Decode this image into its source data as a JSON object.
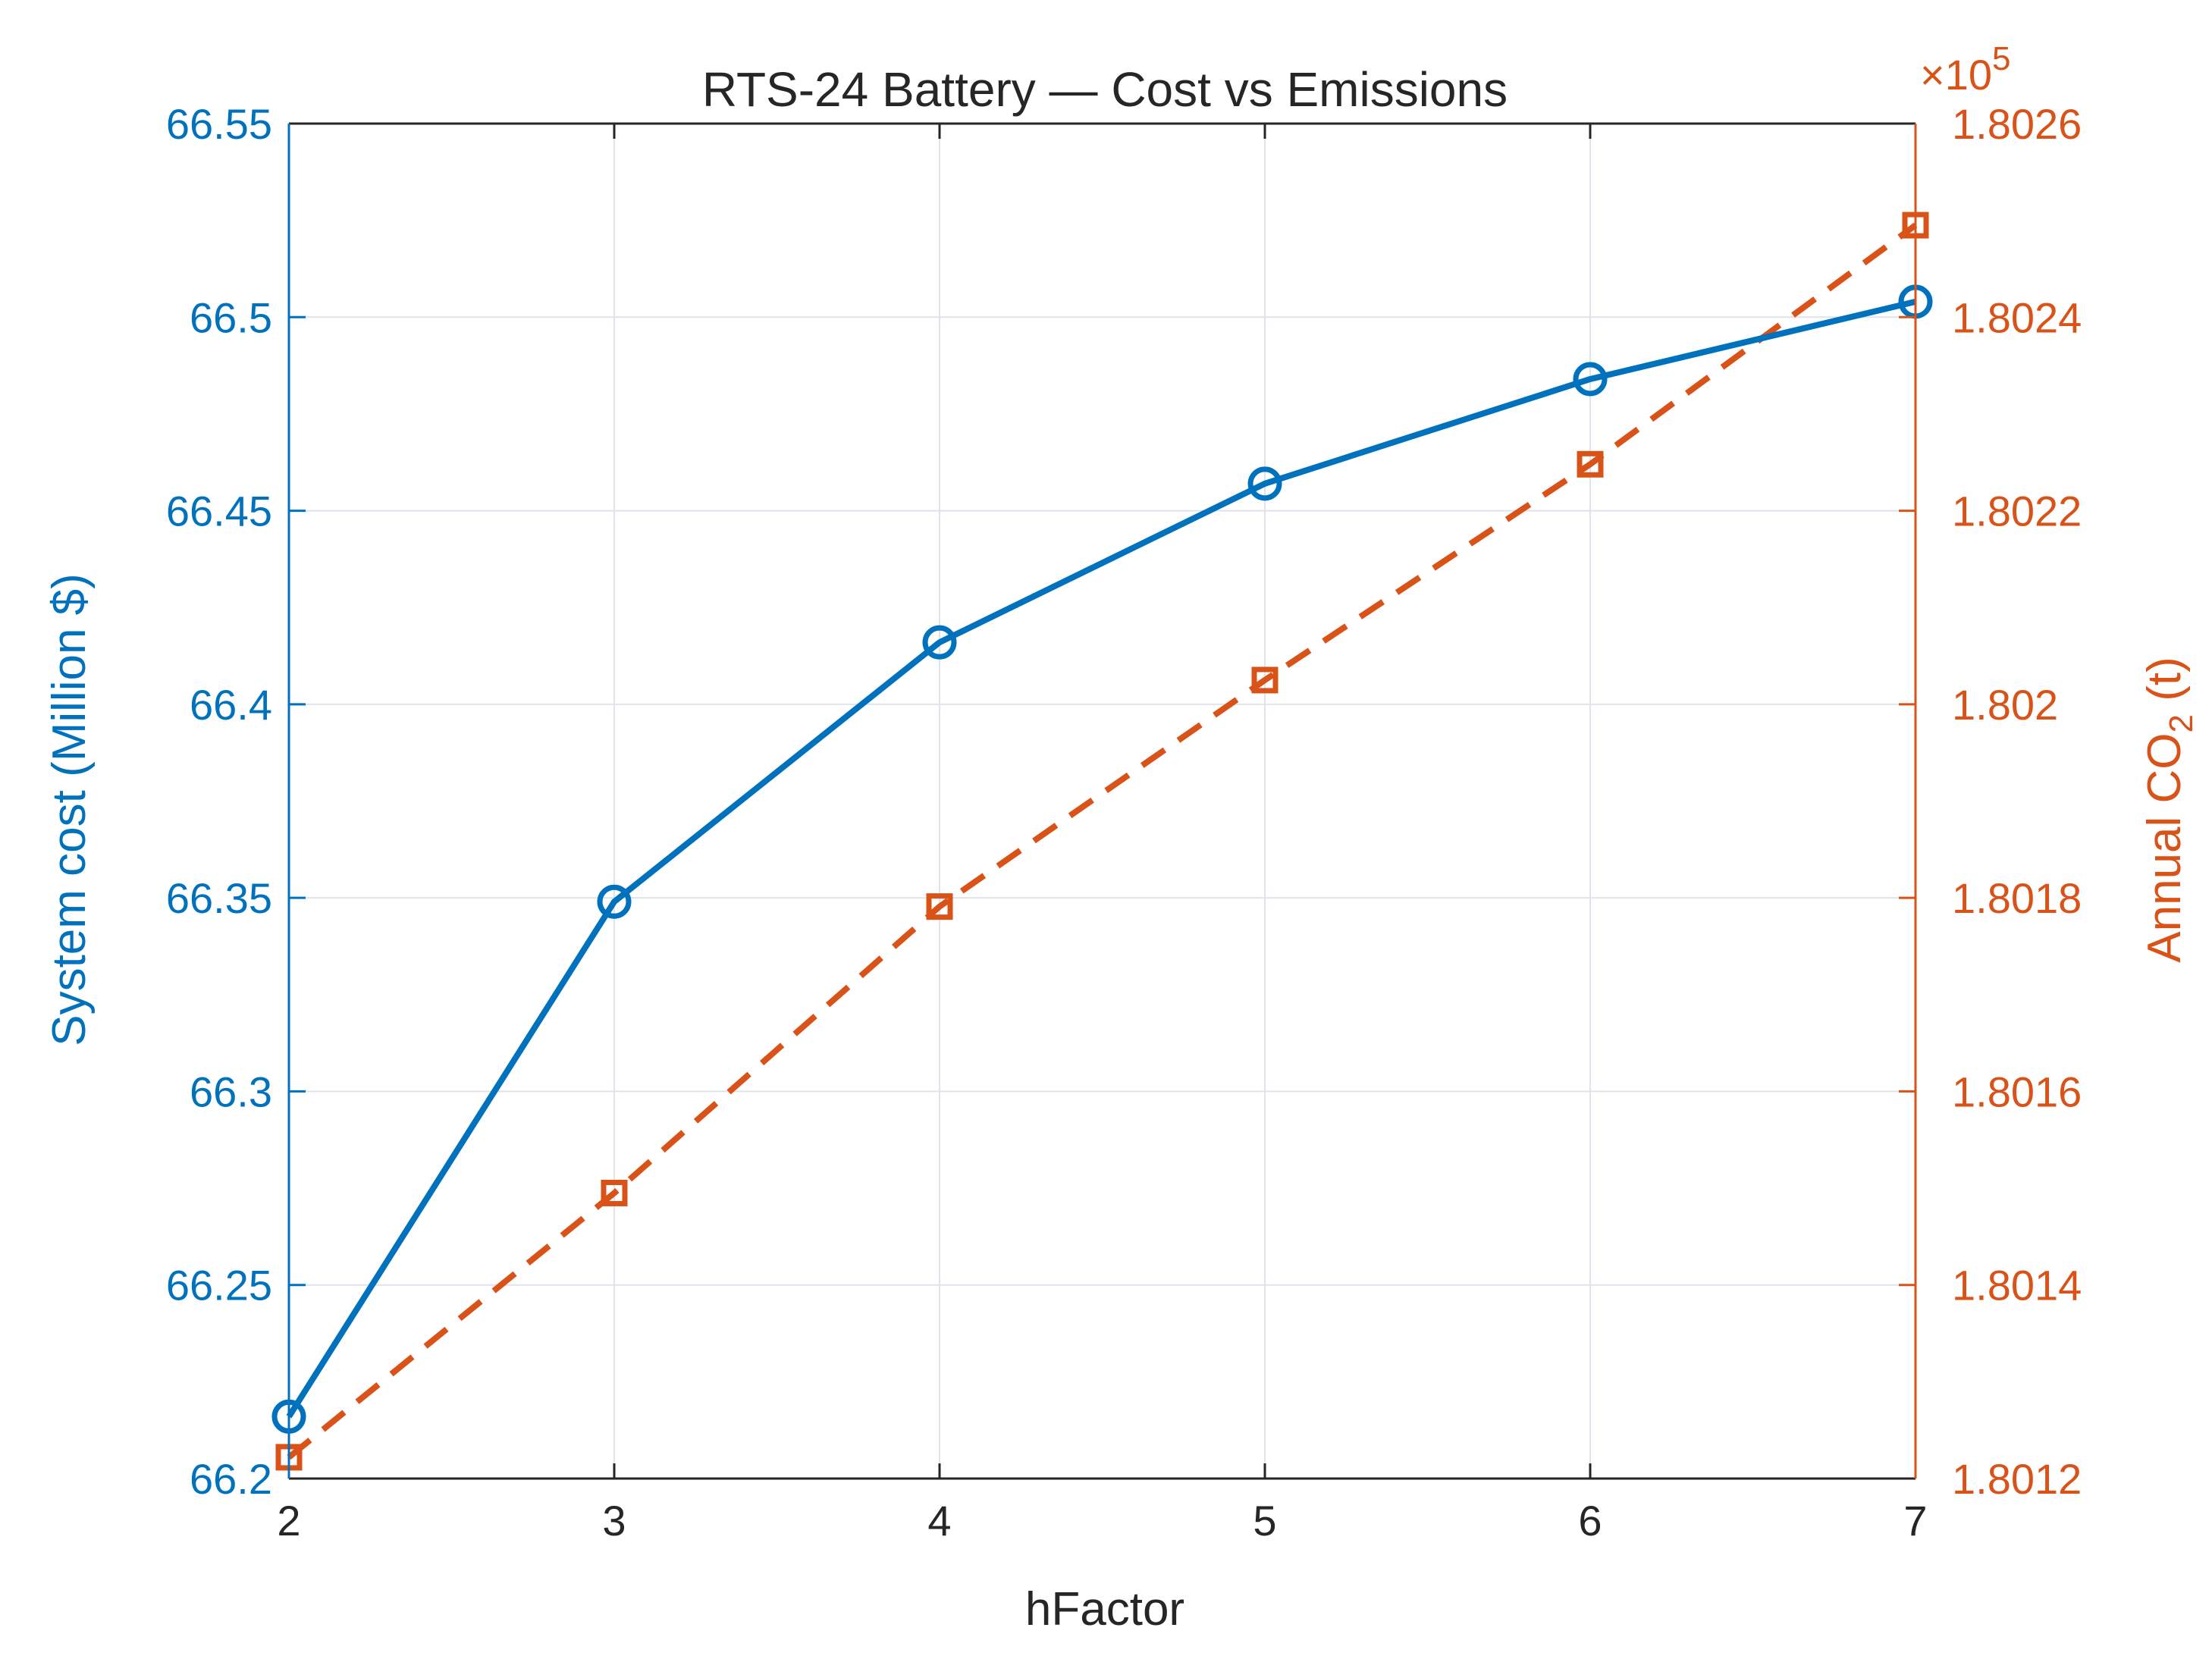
{
  "chart_data": {
    "type": "line",
    "title": "RTS-24 Battery — Cost vs Emissions",
    "xlabel": "hFactor",
    "ylabel_left": "System cost (Million $)",
    "ylabel_right": {
      "prefix": "Annual CO",
      "subscript": "2",
      "suffix": " (t)"
    },
    "right_multiplier": {
      "base": "×10",
      "exponent": "5"
    },
    "x": [
      2,
      3,
      4,
      5,
      6,
      7
    ],
    "xlim": [
      2,
      7
    ],
    "xticks": [
      "2",
      "3",
      "4",
      "5",
      "6",
      "7"
    ],
    "ylim_left": [
      66.2,
      66.55
    ],
    "yticks_left": [
      "66.2",
      "66.25",
      "66.3",
      "66.35",
      "66.4",
      "66.45",
      "66.5",
      "66.55"
    ],
    "ylim_right": [
      1.8012,
      1.8026
    ],
    "yticks_right": [
      "1.8012",
      "1.8014",
      "1.8016",
      "1.8018",
      "1.802",
      "1.8022",
      "1.8024",
      "1.8026"
    ],
    "grid": true,
    "series": [
      {
        "axis": "left",
        "style": "solid",
        "marker": "circle",
        "color": "#0072BD",
        "values": [
          66.216,
          66.349,
          66.416,
          66.457,
          66.484,
          66.504
        ]
      },
      {
        "axis": "right",
        "style": "dashed",
        "marker": "square",
        "color": "#D95319",
        "values": [
          1.801222,
          1.801495,
          1.801791,
          1.802025,
          1.802248,
          1.802495
        ]
      }
    ]
  },
  "colors": {
    "left_axis": "#0072BD",
    "right_axis": "#D95319",
    "text": "#262626",
    "grid": "#dfe4ec"
  }
}
